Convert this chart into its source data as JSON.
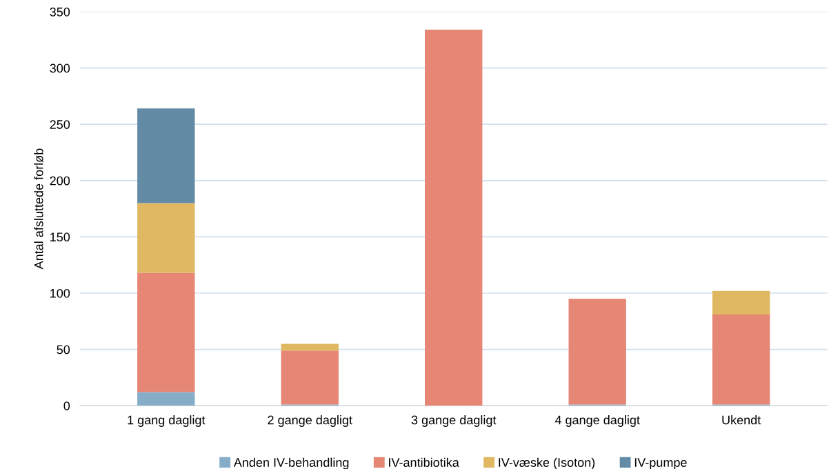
{
  "chart_data": {
    "type": "bar",
    "stacked": true,
    "ylabel": "Antal afsluttede forløb",
    "categories": [
      "1 gang dagligt",
      "2 gange dagligt",
      "3 gange dagligt",
      "4 gange dagligt",
      "Ukendt"
    ],
    "series": [
      {
        "name": "Anden IV-behandling",
        "color": "#85adc8",
        "values": [
          12,
          1,
          0,
          1,
          1
        ]
      },
      {
        "name": "IV-antibiotika",
        "color": "#e68674",
        "values": [
          106,
          48,
          334,
          94,
          80
        ]
      },
      {
        "name": "IV-væske (Isoton)",
        "color": "#e0b862",
        "values": [
          62,
          6,
          0,
          0,
          21
        ]
      },
      {
        "name": "IV-pumpe",
        "color": "#638ba6",
        "values": [
          84,
          0,
          0,
          0,
          0
        ]
      }
    ],
    "ylim": [
      0,
      350
    ],
    "yticks": [
      0,
      50,
      100,
      150,
      200,
      250,
      300,
      350
    ],
    "grid": "y",
    "legend": "bottom"
  }
}
